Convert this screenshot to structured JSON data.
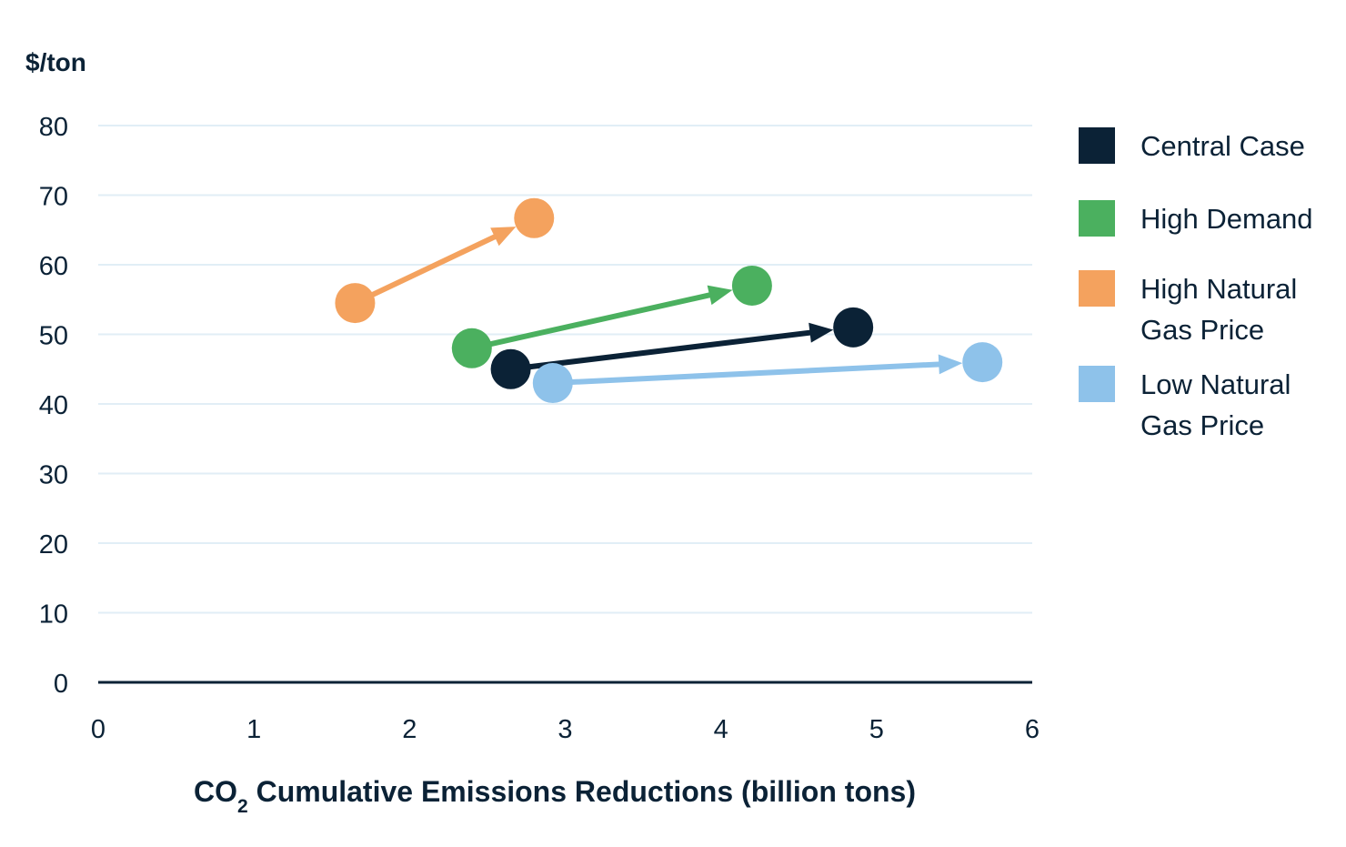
{
  "chart_data": {
    "type": "scatter",
    "ylabel": "$/ton",
    "xlabel": {
      "prefix": "CO",
      "subscript": "2",
      "suffix": " Cumulative Emissions Reductions (billion tons)"
    },
    "xlim": [
      0,
      6
    ],
    "ylim": [
      0,
      80
    ],
    "x_ticks": [
      "0",
      "1",
      "2",
      "3",
      "4",
      "5",
      "6"
    ],
    "y_ticks": [
      "0",
      "10",
      "20",
      "30",
      "40",
      "50",
      "60",
      "70",
      "80"
    ],
    "grid": true,
    "legend_position": "right",
    "series": [
      {
        "name": "Central Case",
        "label_lines": [
          "Central Case"
        ],
        "color": "#0b2236",
        "start": {
          "x": 2.65,
          "y": 45
        },
        "end": {
          "x": 4.85,
          "y": 51
        }
      },
      {
        "name": "High Demand",
        "label_lines": [
          "High Demand"
        ],
        "color": "#4bb05f",
        "start": {
          "x": 2.4,
          "y": 48
        },
        "end": {
          "x": 4.2,
          "y": 57
        }
      },
      {
        "name": "High Natural Gas Price",
        "label_lines": [
          "High Natural",
          "Gas Price"
        ],
        "color": "#f4a25e",
        "start": {
          "x": 1.65,
          "y": 54.5
        },
        "end": {
          "x": 2.8,
          "y": 66.7
        }
      },
      {
        "name": "Low Natural Gas Price",
        "label_lines": [
          "Low Natural",
          "Gas Price"
        ],
        "color": "#8ec2ea",
        "start": {
          "x": 2.92,
          "y": 43
        },
        "end": {
          "x": 5.68,
          "y": 46
        }
      }
    ]
  }
}
